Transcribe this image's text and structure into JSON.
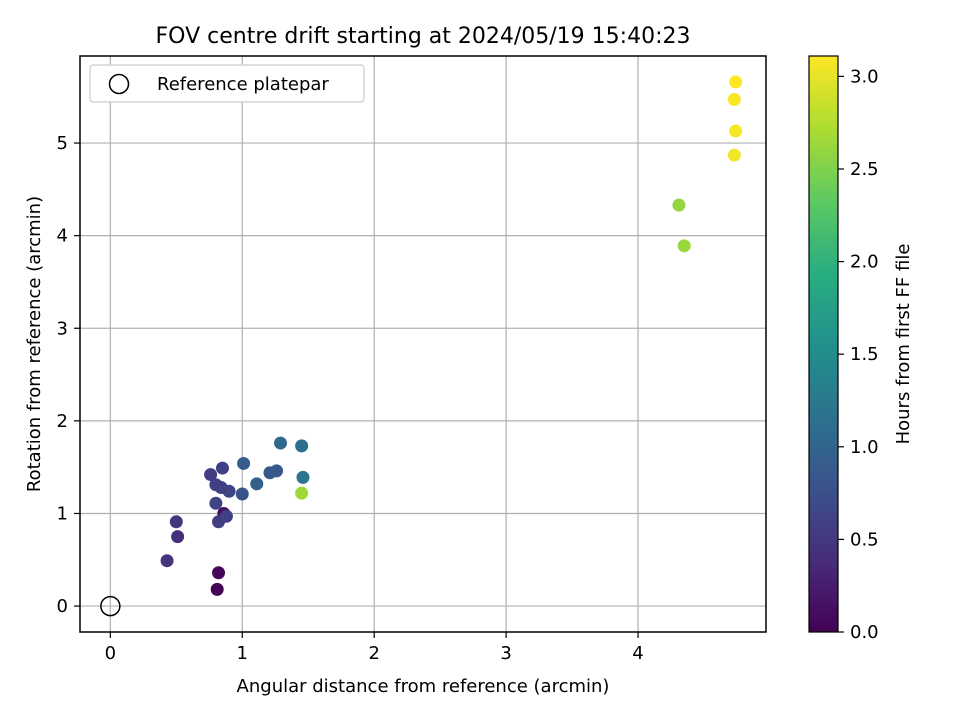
{
  "chart_data": {
    "type": "scatter",
    "title": "FOV centre drift starting at 2024/05/19 15:40:23",
    "xlabel": "Angular distance from reference (arcmin)",
    "ylabel": "Rotation from reference (arcmin)",
    "xlim": [
      -0.23,
      4.97
    ],
    "ylim": [
      -0.28,
      5.94
    ],
    "xticks": [
      0,
      1,
      2,
      3,
      4
    ],
    "yticks": [
      0,
      1,
      2,
      3,
      4,
      5
    ],
    "grid": true,
    "legend": {
      "placement": "top-left",
      "entries": [
        {
          "label": "Reference platepar",
          "marker": "open-circle"
        }
      ]
    },
    "reference_point": {
      "x": 0,
      "y": 0
    },
    "colorbar": {
      "label": "Hours from first FF file",
      "colormap": "viridis",
      "range": [
        0.0,
        3.11
      ],
      "ticks": [
        "0.0",
        "0.5",
        "1.0",
        "1.5",
        "2.0",
        "2.5",
        "3.0"
      ]
    },
    "points": [
      {
        "x": 0.81,
        "y": 0.18,
        "c": 0.02
      },
      {
        "x": 0.82,
        "y": 0.36,
        "c": 0.05
      },
      {
        "x": 0.86,
        "y": 1.0,
        "c": 0.12
      },
      {
        "x": 0.43,
        "y": 0.49,
        "c": 0.45
      },
      {
        "x": 0.51,
        "y": 0.75,
        "c": 0.42
      },
      {
        "x": 0.5,
        "y": 0.91,
        "c": 0.48
      },
      {
        "x": 0.82,
        "y": 0.91,
        "c": 0.55
      },
      {
        "x": 0.88,
        "y": 0.97,
        "c": 0.6
      },
      {
        "x": 0.8,
        "y": 1.11,
        "c": 0.62
      },
      {
        "x": 0.9,
        "y": 1.24,
        "c": 0.62
      },
      {
        "x": 0.8,
        "y": 1.31,
        "c": 0.6
      },
      {
        "x": 0.84,
        "y": 1.28,
        "c": 0.58
      },
      {
        "x": 0.76,
        "y": 1.42,
        "c": 0.55
      },
      {
        "x": 0.85,
        "y": 1.49,
        "c": 0.6
      },
      {
        "x": 1.0,
        "y": 1.21,
        "c": 0.8
      },
      {
        "x": 1.01,
        "y": 1.54,
        "c": 0.9
      },
      {
        "x": 1.11,
        "y": 1.32,
        "c": 0.95
      },
      {
        "x": 1.21,
        "y": 1.44,
        "c": 0.85
      },
      {
        "x": 1.26,
        "y": 1.46,
        "c": 0.85
      },
      {
        "x": 1.29,
        "y": 1.76,
        "c": 1.05
      },
      {
        "x": 1.45,
        "y": 1.73,
        "c": 1.12
      },
      {
        "x": 1.46,
        "y": 1.39,
        "c": 1.2
      },
      {
        "x": 1.45,
        "y": 1.22,
        "c": 2.65
      },
      {
        "x": 4.31,
        "y": 4.33,
        "c": 2.6
      },
      {
        "x": 4.35,
        "y": 3.89,
        "c": 2.62
      },
      {
        "x": 4.73,
        "y": 4.87,
        "c": 3.05
      },
      {
        "x": 4.74,
        "y": 5.13,
        "c": 3.08
      },
      {
        "x": 4.73,
        "y": 5.47,
        "c": 3.09
      },
      {
        "x": 4.74,
        "y": 5.66,
        "c": 3.11
      }
    ]
  }
}
